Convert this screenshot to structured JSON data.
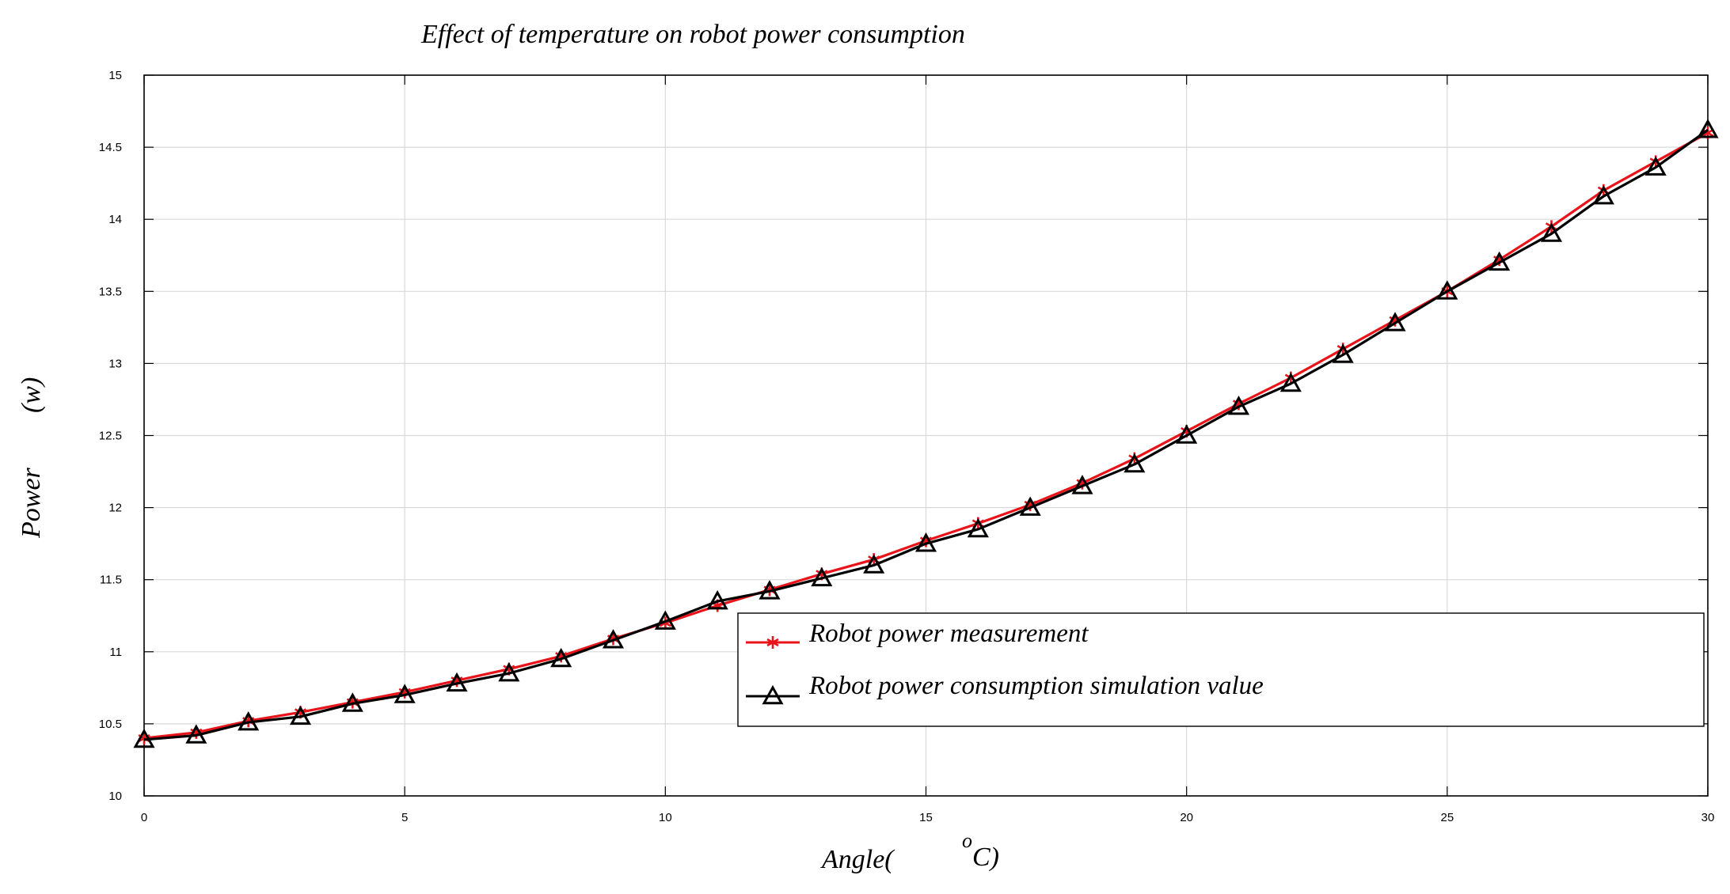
{
  "chart_data": {
    "type": "line",
    "title": "Effect of temperature on robot power consumption",
    "xlabel_main": "Angle(",
    "xlabel_sup": "o",
    "xlabel_unit": " C)",
    "ylabel_main": "Power",
    "ylabel_unit": "(w)",
    "xlim": [
      0,
      30
    ],
    "ylim": [
      10,
      15
    ],
    "xticks": [
      0,
      5,
      10,
      15,
      20,
      25,
      30
    ],
    "xtick_labels": [
      "0",
      "5",
      "10",
      "15",
      "20",
      "25",
      "30"
    ],
    "yticks": [
      10,
      10.5,
      11,
      11.5,
      12,
      12.5,
      13,
      13.5,
      14,
      14.5,
      15
    ],
    "ytick_labels": [
      "10",
      "10.5",
      "11",
      "11.5",
      "12",
      "12.5",
      "13",
      "13.5",
      "14",
      "14.5",
      "15"
    ],
    "grid": true,
    "legend_position": "lower-right",
    "x": [
      0,
      1,
      2,
      3,
      4,
      5,
      6,
      7,
      8,
      9,
      10,
      11,
      12,
      13,
      14,
      15,
      16,
      17,
      18,
      19,
      20,
      21,
      22,
      23,
      24,
      25,
      26,
      27,
      28,
      29,
      30
    ],
    "series": [
      {
        "name": "Robot power measurement",
        "color": "#e8141a",
        "marker": "asterisk",
        "values": [
          10.4,
          10.44,
          10.52,
          10.58,
          10.65,
          10.72,
          10.8,
          10.88,
          10.97,
          11.09,
          11.2,
          11.32,
          11.43,
          11.54,
          11.64,
          11.77,
          11.89,
          12.02,
          12.17,
          12.34,
          12.53,
          12.72,
          12.9,
          13.1,
          13.3,
          13.5,
          13.72,
          13.95,
          14.2,
          14.4,
          14.6
        ]
      },
      {
        "name": "Robot power consumption simulation value",
        "color": "#000000",
        "marker": "triangle",
        "values": [
          10.39,
          10.42,
          10.51,
          10.55,
          10.64,
          10.7,
          10.78,
          10.85,
          10.95,
          11.08,
          11.21,
          11.35,
          11.42,
          11.51,
          11.6,
          11.75,
          11.85,
          12.0,
          12.15,
          12.3,
          12.5,
          12.7,
          12.86,
          13.06,
          13.28,
          13.5,
          13.7,
          13.9,
          14.16,
          14.36,
          14.62
        ]
      }
    ]
  }
}
